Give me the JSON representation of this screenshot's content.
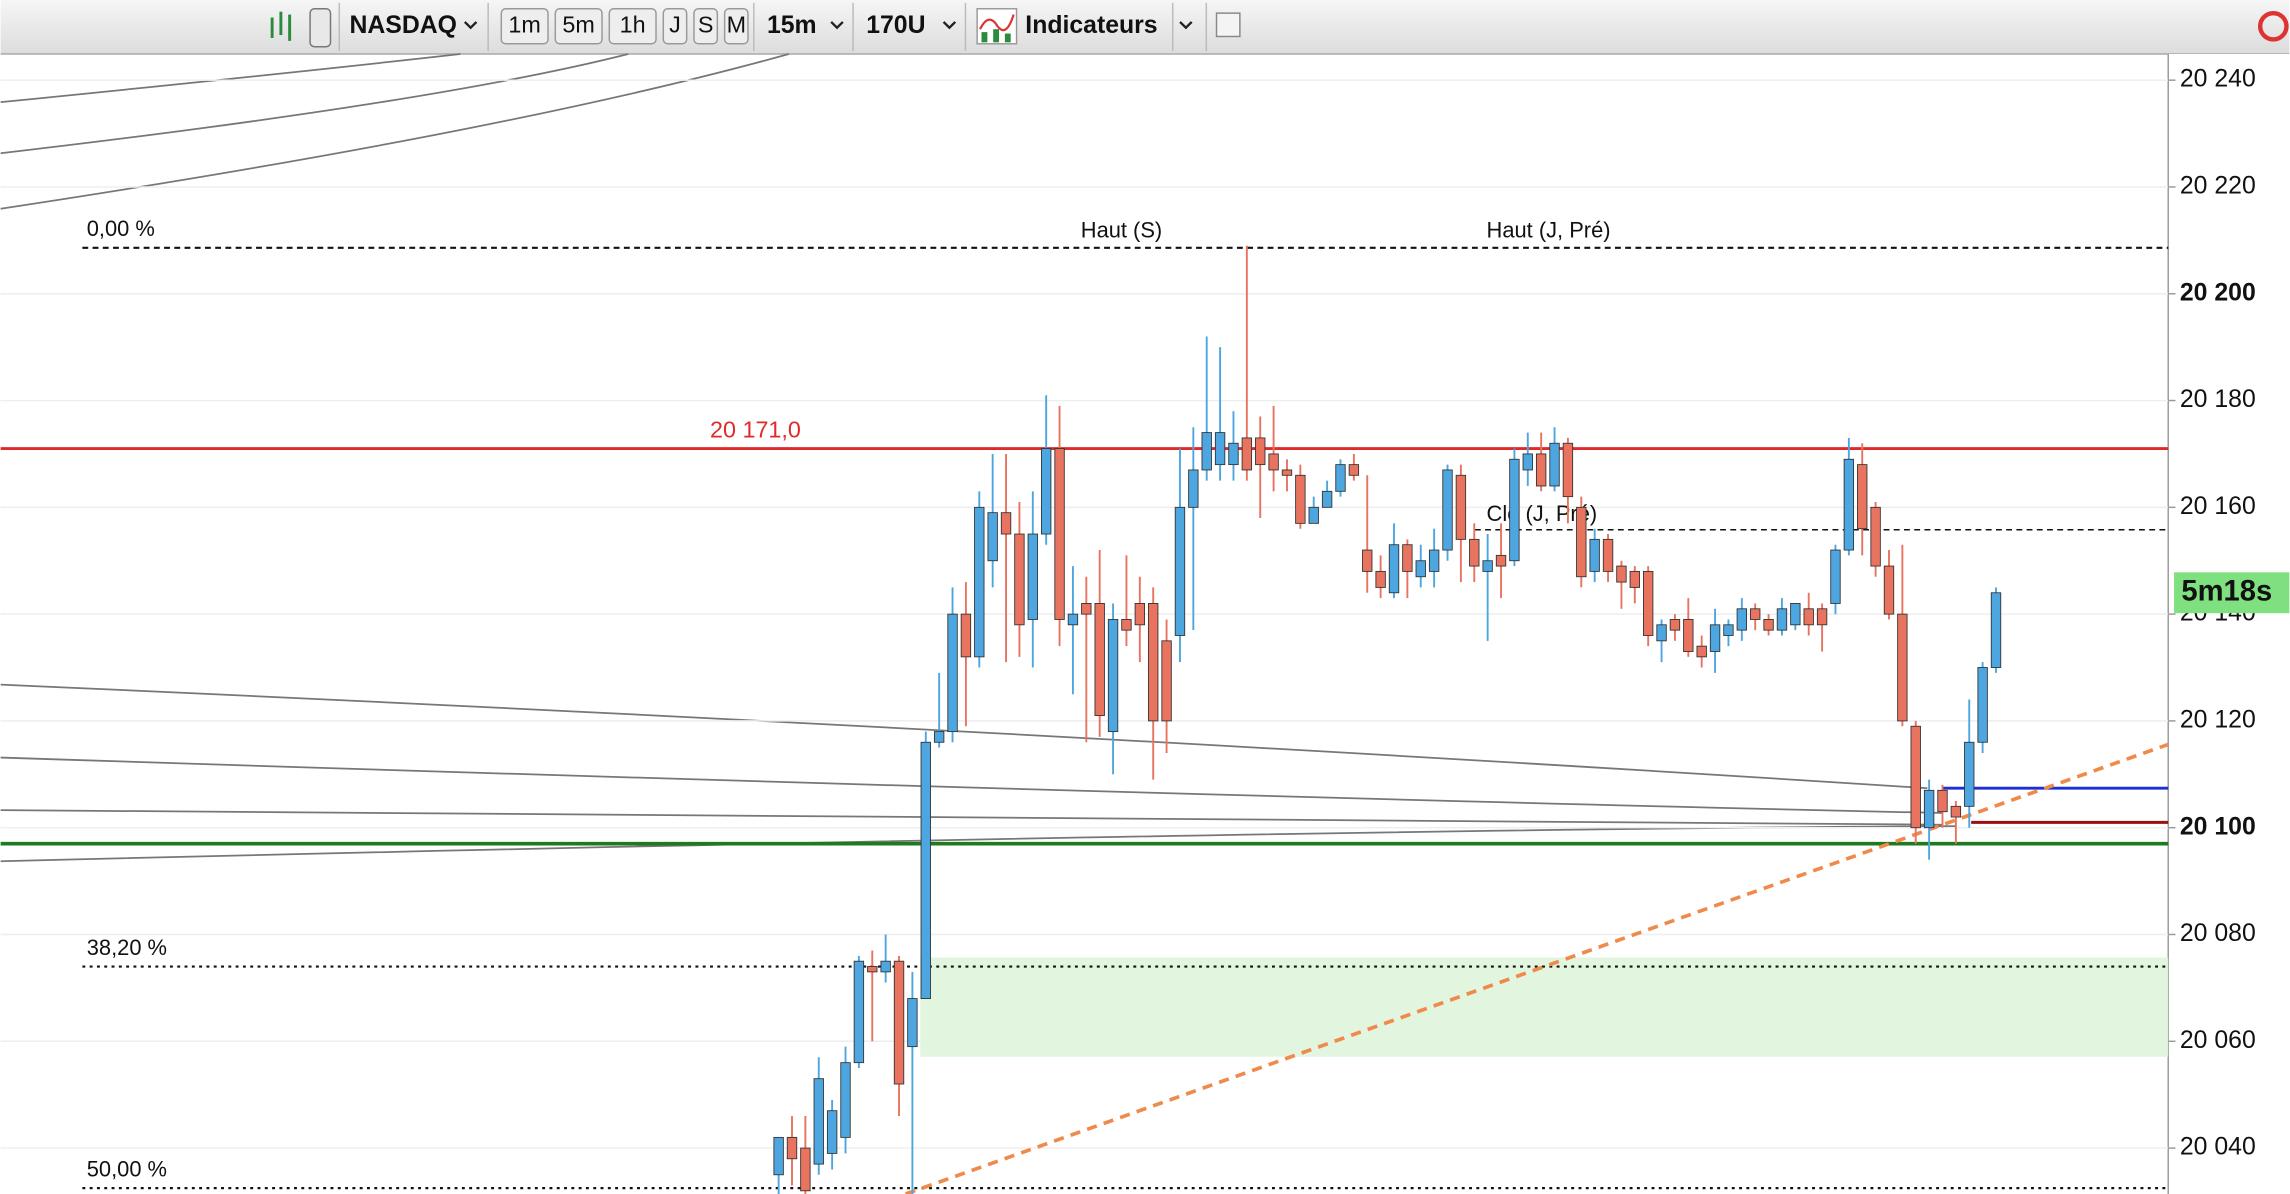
{
  "toolbar": {
    "symbol": "NASDAQ",
    "periods": [
      "1m",
      "5m",
      "1h",
      "J",
      "S",
      "M"
    ],
    "interval": "15m",
    "units": "170U",
    "indicators": "Indicateurs"
  },
  "chart_data": {
    "type": "candlestick",
    "ylim": [
      20031.4,
      20244.9
    ],
    "yticks": [
      {
        "value": 20040,
        "label": "20 040"
      },
      {
        "value": 20060,
        "label": "20 060"
      },
      {
        "value": 20080,
        "label": "20 080"
      },
      {
        "value": 20100,
        "label": "20 100"
      },
      {
        "value": 20120,
        "label": "20 120"
      },
      {
        "value": 20140,
        "label": "20 140"
      },
      {
        "value": 20160,
        "label": "20 160"
      },
      {
        "value": 20180,
        "label": "20 180"
      },
      {
        "value": 20200,
        "label": "20 200"
      },
      {
        "value": 20220,
        "label": "20 220"
      },
      {
        "value": 20240,
        "label": "20 240"
      }
    ],
    "grid": true,
    "up_color": "#4da6e0",
    "down_color": "#e8735e",
    "ohlc": [
      {
        "open": 20035,
        "high": 20042,
        "low": 20030,
        "close": 20042
      },
      {
        "open": 20042,
        "high": 20046,
        "low": 20033,
        "close": 20038
      },
      {
        "open": 20040,
        "high": 20046,
        "low": 20031,
        "close": 20032
      },
      {
        "open": 20037,
        "high": 20057,
        "low": 20035,
        "close": 20053
      },
      {
        "open": 20039,
        "high": 20049,
        "low": 20036,
        "close": 20047
      },
      {
        "open": 20042,
        "high": 20059,
        "low": 20039,
        "close": 20056
      },
      {
        "open": 20056,
        "high": 20076,
        "low": 20055,
        "close": 20075
      },
      {
        "open": 20074,
        "high": 20077,
        "low": 20060,
        "close": 20073
      },
      {
        "open": 20073,
        "high": 20080,
        "low": 20071,
        "close": 20075
      },
      {
        "open": 20075,
        "high": 20076,
        "low": 20046,
        "close": 20052
      },
      {
        "open": 20059,
        "high": 20073,
        "low": 20031,
        "close": 20068
      },
      {
        "open": 20068,
        "high": 20118,
        "low": 20068,
        "close": 20116
      },
      {
        "open": 20116,
        "high": 20129,
        "low": 20115,
        "close": 20118
      },
      {
        "open": 20118,
        "high": 20145,
        "low": 20116,
        "close": 20140
      },
      {
        "open": 20140,
        "high": 20146,
        "low": 20119,
        "close": 20132
      },
      {
        "open": 20132,
        "high": 20163,
        "low": 20130,
        "close": 20160
      },
      {
        "open": 20150,
        "high": 20170,
        "low": 20145,
        "close": 20159
      },
      {
        "open": 20159,
        "high": 20170,
        "low": 20131,
        "close": 20155
      },
      {
        "open": 20155,
        "high": 20161,
        "low": 20132,
        "close": 20138
      },
      {
        "open": 20139,
        "high": 20163,
        "low": 20130,
        "close": 20155
      },
      {
        "open": 20155,
        "high": 20181,
        "low": 20153,
        "close": 20171
      },
      {
        "open": 20171,
        "high": 20179,
        "low": 20134,
        "close": 20139
      },
      {
        "open": 20138,
        "high": 20149,
        "low": 20125,
        "close": 20140
      },
      {
        "open": 20142,
        "high": 20147,
        "low": 20116,
        "close": 20140
      },
      {
        "open": 20142,
        "high": 20152,
        "low": 20117,
        "close": 20121
      },
      {
        "open": 20118,
        "high": 20142,
        "low": 20110,
        "close": 20139
      },
      {
        "open": 20139,
        "high": 20151,
        "low": 20134,
        "close": 20137
      },
      {
        "open": 20142,
        "high": 20147,
        "low": 20131,
        "close": 20138
      },
      {
        "open": 20142,
        "high": 20145,
        "low": 20109,
        "close": 20120
      },
      {
        "open": 20135,
        "high": 20139,
        "low": 20114,
        "close": 20120
      },
      {
        "open": 20136,
        "high": 20171,
        "low": 20131,
        "close": 20160
      },
      {
        "open": 20160,
        "high": 20175,
        "low": 20137,
        "close": 20167
      },
      {
        "open": 20167,
        "high": 20192,
        "low": 20165,
        "close": 20174
      },
      {
        "open": 20168,
        "high": 20190,
        "low": 20165,
        "close": 20174
      },
      {
        "open": 20168,
        "high": 20178,
        "low": 20165,
        "close": 20172
      },
      {
        "open": 20173,
        "high": 20209,
        "low": 20165,
        "close": 20167
      },
      {
        "open": 20173,
        "high": 20177,
        "low": 20158,
        "close": 20168
      },
      {
        "open": 20170,
        "high": 20179,
        "low": 20163,
        "close": 20167
      },
      {
        "open": 20167,
        "high": 20169,
        "low": 20163,
        "close": 20166
      },
      {
        "open": 20166,
        "high": 20168,
        "low": 20156,
        "close": 20157
      },
      {
        "open": 20157,
        "high": 20162,
        "low": 20157,
        "close": 20160
      },
      {
        "open": 20160,
        "high": 20165,
        "low": 20160,
        "close": 20163
      },
      {
        "open": 20163,
        "high": 20169,
        "low": 20162,
        "close": 20168
      },
      {
        "open": 20168,
        "high": 20170,
        "low": 20165,
        "close": 20166
      },
      {
        "open": 20152,
        "high": 20166,
        "low": 20144,
        "close": 20148
      },
      {
        "open": 20148,
        "high": 20151,
        "low": 20143,
        "close": 20145
      },
      {
        "open": 20144,
        "high": 20157,
        "low": 20143,
        "close": 20153
      },
      {
        "open": 20153,
        "high": 20154,
        "low": 20143,
        "close": 20148
      },
      {
        "open": 20147,
        "high": 20153,
        "low": 20145,
        "close": 20150
      },
      {
        "open": 20148,
        "high": 20156,
        "low": 20145,
        "close": 20152
      },
      {
        "open": 20152,
        "high": 20168,
        "low": 20150,
        "close": 20167
      },
      {
        "open": 20166,
        "high": 20168,
        "low": 20146,
        "close": 20154
      },
      {
        "open": 20154,
        "high": 20157,
        "low": 20146,
        "close": 20149
      },
      {
        "open": 20148,
        "high": 20155,
        "low": 20135,
        "close": 20150
      },
      {
        "open": 20151,
        "high": 20157,
        "low": 20143,
        "close": 20149
      },
      {
        "open": 20150,
        "high": 20171,
        "low": 20149,
        "close": 20169
      },
      {
        "open": 20167,
        "high": 20174,
        "low": 20164,
        "close": 20170
      },
      {
        "open": 20170,
        "high": 20174,
        "low": 20163,
        "close": 20164
      },
      {
        "open": 20164,
        "high": 20175,
        "low": 20163,
        "close": 20172
      },
      {
        "open": 20172,
        "high": 20173,
        "low": 20157,
        "close": 20162
      },
      {
        "open": 20160,
        "high": 20162,
        "low": 20145,
        "close": 20147
      },
      {
        "open": 20148,
        "high": 20156,
        "low": 20146,
        "close": 20154
      },
      {
        "open": 20154,
        "high": 20155,
        "low": 20146,
        "close": 20148
      },
      {
        "open": 20149,
        "high": 20150,
        "low": 20141,
        "close": 20146
      },
      {
        "open": 20148,
        "high": 20149,
        "low": 20142,
        "close": 20145
      },
      {
        "open": 20148,
        "high": 20149,
        "low": 20134,
        "close": 20136
      },
      {
        "open": 20135,
        "high": 20139,
        "low": 20131,
        "close": 20138
      },
      {
        "open": 20139,
        "high": 20140,
        "low": 20135,
        "close": 20137
      },
      {
        "open": 20139,
        "high": 20143,
        "low": 20132,
        "close": 20133
      },
      {
        "open": 20134,
        "high": 20136,
        "low": 20130,
        "close": 20132
      },
      {
        "open": 20133,
        "high": 20141,
        "low": 20129,
        "close": 20138
      },
      {
        "open": 20136,
        "high": 20139,
        "low": 20134,
        "close": 20138
      },
      {
        "open": 20137,
        "high": 20143,
        "low": 20135,
        "close": 20141
      },
      {
        "open": 20141,
        "high": 20142,
        "low": 20137,
        "close": 20139
      },
      {
        "open": 20139,
        "high": 20140,
        "low": 20136,
        "close": 20137
      },
      {
        "open": 20137,
        "high": 20143,
        "low": 20136,
        "close": 20141
      },
      {
        "open": 20138,
        "high": 20142,
        "low": 20137,
        "close": 20142
      },
      {
        "open": 20141,
        "high": 20144,
        "low": 20136,
        "close": 20138
      },
      {
        "open": 20141,
        "high": 20142,
        "low": 20133,
        "close": 20138
      },
      {
        "open": 20142,
        "high": 20153,
        "low": 20140,
        "close": 20152
      },
      {
        "open": 20152,
        "high": 20173,
        "low": 20151,
        "close": 20169
      },
      {
        "open": 20168,
        "high": 20172,
        "low": 20151,
        "close": 20156
      },
      {
        "open": 20160,
        "high": 20161,
        "low": 20147,
        "close": 20149
      },
      {
        "open": 20149,
        "high": 20152,
        "low": 20139,
        "close": 20140
      },
      {
        "open": 20140,
        "high": 20153,
        "low": 20119,
        "close": 20120
      },
      {
        "open": 20119,
        "high": 20120,
        "low": 20097,
        "close": 20100
      },
      {
        "open": 20100,
        "high": 20109,
        "low": 20094,
        "close": 20107
      },
      {
        "open": 20107,
        "high": 20108,
        "low": 20100,
        "close": 20103
      },
      {
        "open": 20104,
        "high": 20105,
        "low": 20097,
        "close": 20102
      },
      {
        "open": 20104,
        "high": 20124,
        "low": 20100,
        "close": 20116
      },
      {
        "open": 20116,
        "high": 20131,
        "low": 20114,
        "close": 20130
      },
      {
        "open": 20130,
        "high": 20145,
        "low": 20129,
        "close": 20144
      }
    ],
    "resistance": {
      "value": 20171,
      "label": "20 171,0",
      "color": "#e02a2a"
    },
    "support": {
      "value": 20097,
      "color": "#1e7a1e"
    },
    "blue_level": {
      "value": 20107.4,
      "color": "#1a2fd6"
    },
    "darkred_level": {
      "value": 20101,
      "color": "#9a1010"
    },
    "fib_levels": [
      {
        "value": 20208.6,
        "label": "0,00 %"
      },
      {
        "value": 20074,
        "label": "38,20 %"
      },
      {
        "value": 20032.5,
        "label": "50,00 %"
      }
    ],
    "high_labels": [
      "Haut (S)",
      "Haut (J, Pré)"
    ],
    "prev_close": {
      "value": 20155.8,
      "label": "Clo (J, Pré)"
    },
    "zone": [
      20075.7,
      20057.1
    ],
    "trend_line": [
      20031.4,
      20115.6
    ],
    "timer": "5m18s"
  }
}
